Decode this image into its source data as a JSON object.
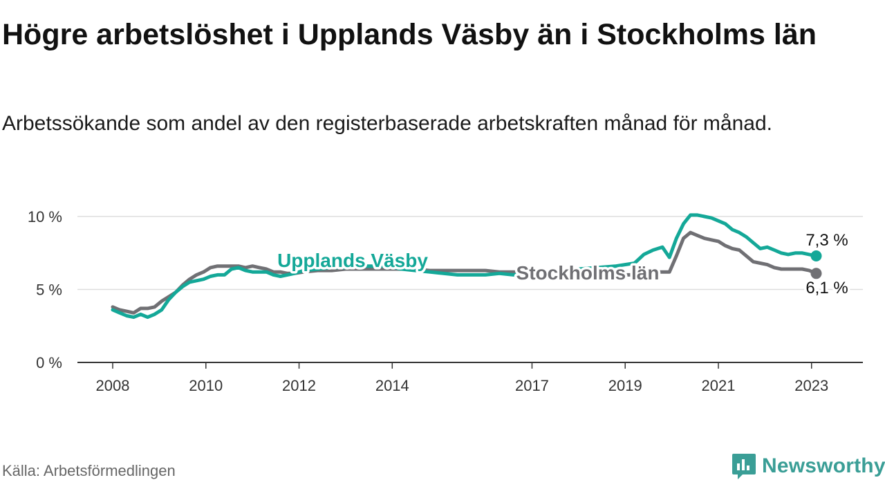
{
  "title": "Högre arbetslöshet i Upplands Väsby än i Stockholms län",
  "subtitle": "Arbetssökande som andel av den registerbaserade arbetskraften månad för månad.",
  "source": "Källa: Arbetsförmedlingen",
  "brand": "Newsworthy",
  "colors": {
    "primary": "#14a898",
    "secondary": "#707074",
    "grid": "#dddddd",
    "axis": "#333333",
    "brand": "#3a9e96"
  },
  "chart_data": {
    "type": "line",
    "title": "Högre arbetslöshet i Upplands Väsby än i Stockholms län",
    "xlabel": "",
    "ylabel": "",
    "xlim": [
      2008.0,
      2023.33
    ],
    "ylim": [
      0,
      10
    ],
    "y_ticks": [
      0,
      5,
      10
    ],
    "y_tick_labels": [
      "0 %",
      "5 %",
      "10 %"
    ],
    "x_ticks": [
      2008,
      2010,
      2012,
      2014,
      2017,
      2019,
      2021,
      2023
    ],
    "x_tick_labels": [
      "2008",
      "2010",
      "2012",
      "2014",
      "2017",
      "2019",
      "2021",
      "2023"
    ],
    "grid": true,
    "series": [
      {
        "name": "Upplands Väsby",
        "color": "#14a898",
        "label": "Upplands Väsby",
        "end_label": "7,3 %",
        "x": [
          2008.0,
          2008.15,
          2008.3,
          2008.45,
          2008.6,
          2008.75,
          2008.9,
          2009.05,
          2009.2,
          2009.35,
          2009.5,
          2009.65,
          2009.8,
          2009.95,
          2010.1,
          2010.25,
          2010.4,
          2010.55,
          2010.7,
          2010.85,
          2011.0,
          2011.15,
          2011.3,
          2011.45,
          2011.6,
          2011.75,
          2011.9,
          2012.1,
          2012.4,
          2012.7,
          2013.0,
          2013.3,
          2013.6,
          2013.9,
          2014.2,
          2014.5,
          2014.8,
          2015.1,
          2015.4,
          2015.7,
          2016.0,
          2016.3,
          2016.6,
          2016.9,
          2017.2,
          2017.6,
          2018.0,
          2018.4,
          2018.8,
          2019.2,
          2019.4,
          2019.6,
          2019.8,
          2019.95,
          2020.1,
          2020.25,
          2020.4,
          2020.55,
          2020.7,
          2020.85,
          2021.0,
          2021.15,
          2021.3,
          2021.45,
          2021.6,
          2021.75,
          2021.9,
          2022.05,
          2022.2,
          2022.35,
          2022.5,
          2022.65,
          2022.8,
          2022.95,
          2023.1
        ],
        "y": [
          3.6,
          3.4,
          3.2,
          3.1,
          3.3,
          3.1,
          3.3,
          3.6,
          4.3,
          4.8,
          5.2,
          5.5,
          5.6,
          5.7,
          5.9,
          6.0,
          6.0,
          6.4,
          6.5,
          6.3,
          6.2,
          6.2,
          6.2,
          6.0,
          5.9,
          6.0,
          6.1,
          6.3,
          6.4,
          6.5,
          6.5,
          6.6,
          6.6,
          6.6,
          6.4,
          6.3,
          6.2,
          6.1,
          6.0,
          6.0,
          6.0,
          6.1,
          6.0,
          6.1,
          6.2,
          6.3,
          6.4,
          6.5,
          6.6,
          6.8,
          7.4,
          7.7,
          7.9,
          7.2,
          8.5,
          9.5,
          10.1,
          10.1,
          10.0,
          9.9,
          9.7,
          9.5,
          9.1,
          8.9,
          8.6,
          8.2,
          7.8,
          7.9,
          7.7,
          7.5,
          7.4,
          7.5,
          7.5,
          7.4,
          7.3
        ]
      },
      {
        "name": "Stockholms län",
        "color": "#707074",
        "label": "Stockholms län",
        "end_label": "6,1 %",
        "x": [
          2008.0,
          2008.15,
          2008.3,
          2008.45,
          2008.6,
          2008.75,
          2008.9,
          2009.05,
          2009.2,
          2009.35,
          2009.5,
          2009.65,
          2009.8,
          2009.95,
          2010.1,
          2010.25,
          2010.4,
          2010.55,
          2010.7,
          2010.85,
          2011.0,
          2011.15,
          2011.3,
          2011.45,
          2011.6,
          2011.75,
          2011.9,
          2012.1,
          2012.4,
          2012.7,
          2013.0,
          2013.3,
          2013.6,
          2013.9,
          2014.2,
          2014.5,
          2014.8,
          2015.1,
          2015.4,
          2015.7,
          2016.0,
          2016.3,
          2016.6,
          2016.9,
          2017.2,
          2017.6,
          2018.0,
          2018.4,
          2018.8,
          2019.2,
          2019.4,
          2019.6,
          2019.8,
          2019.95,
          2020.1,
          2020.25,
          2020.4,
          2020.55,
          2020.7,
          2020.85,
          2021.0,
          2021.15,
          2021.3,
          2021.45,
          2021.6,
          2021.75,
          2021.9,
          2022.05,
          2022.2,
          2022.35,
          2022.5,
          2022.65,
          2022.8,
          2022.95,
          2023.1
        ],
        "y": [
          3.8,
          3.6,
          3.5,
          3.4,
          3.7,
          3.7,
          3.8,
          4.2,
          4.5,
          4.8,
          5.3,
          5.7,
          6.0,
          6.2,
          6.5,
          6.6,
          6.6,
          6.6,
          6.6,
          6.5,
          6.6,
          6.5,
          6.4,
          6.2,
          6.2,
          6.1,
          6.1,
          6.2,
          6.3,
          6.3,
          6.4,
          6.4,
          6.4,
          6.4,
          6.4,
          6.4,
          6.3,
          6.3,
          6.3,
          6.3,
          6.3,
          6.2,
          6.2,
          6.2,
          6.1,
          6.1,
          6.1,
          6.0,
          6.0,
          6.0,
          6.1,
          6.2,
          6.2,
          6.2,
          7.3,
          8.5,
          8.9,
          8.7,
          8.5,
          8.4,
          8.3,
          8.0,
          7.8,
          7.7,
          7.3,
          6.9,
          6.8,
          6.7,
          6.5,
          6.4,
          6.4,
          6.4,
          6.4,
          6.3,
          6.1
        ]
      }
    ]
  }
}
